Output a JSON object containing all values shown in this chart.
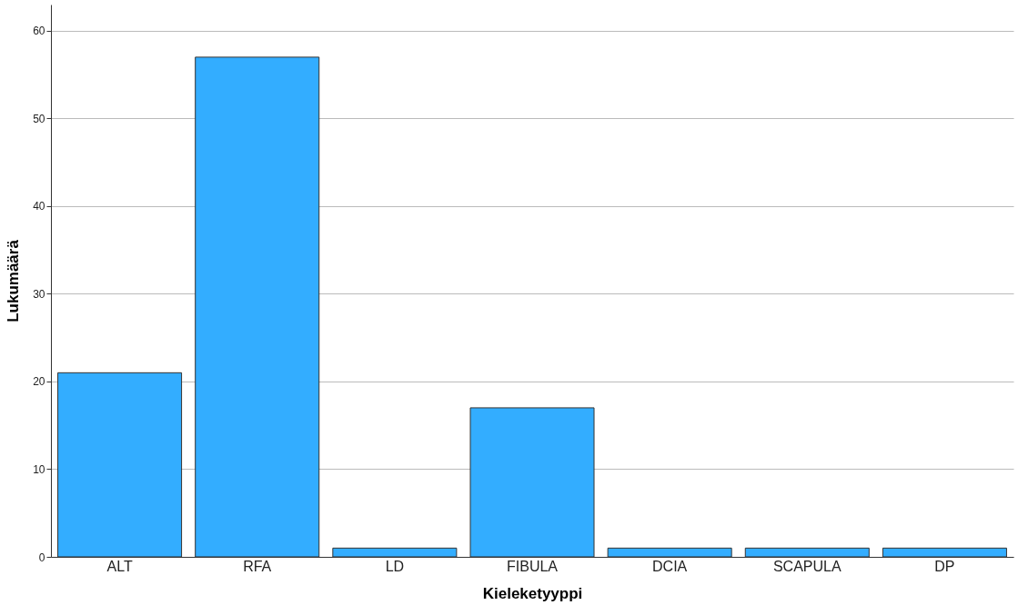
{
  "chart_data": {
    "type": "bar",
    "xlabel": "Kieleketyyppi",
    "ylabel": "Lukumäärä",
    "categories": [
      "ALT",
      "RFA",
      "LD",
      "FIBULA",
      "DCIA",
      "SCAPULA",
      "DP"
    ],
    "values": [
      21,
      57,
      1,
      17,
      1,
      1,
      1
    ],
    "color": "#33adff",
    "ylim": [
      0,
      63
    ],
    "yticks": [
      0,
      10,
      20,
      30,
      40,
      50,
      60
    ],
    "grid": "y"
  }
}
